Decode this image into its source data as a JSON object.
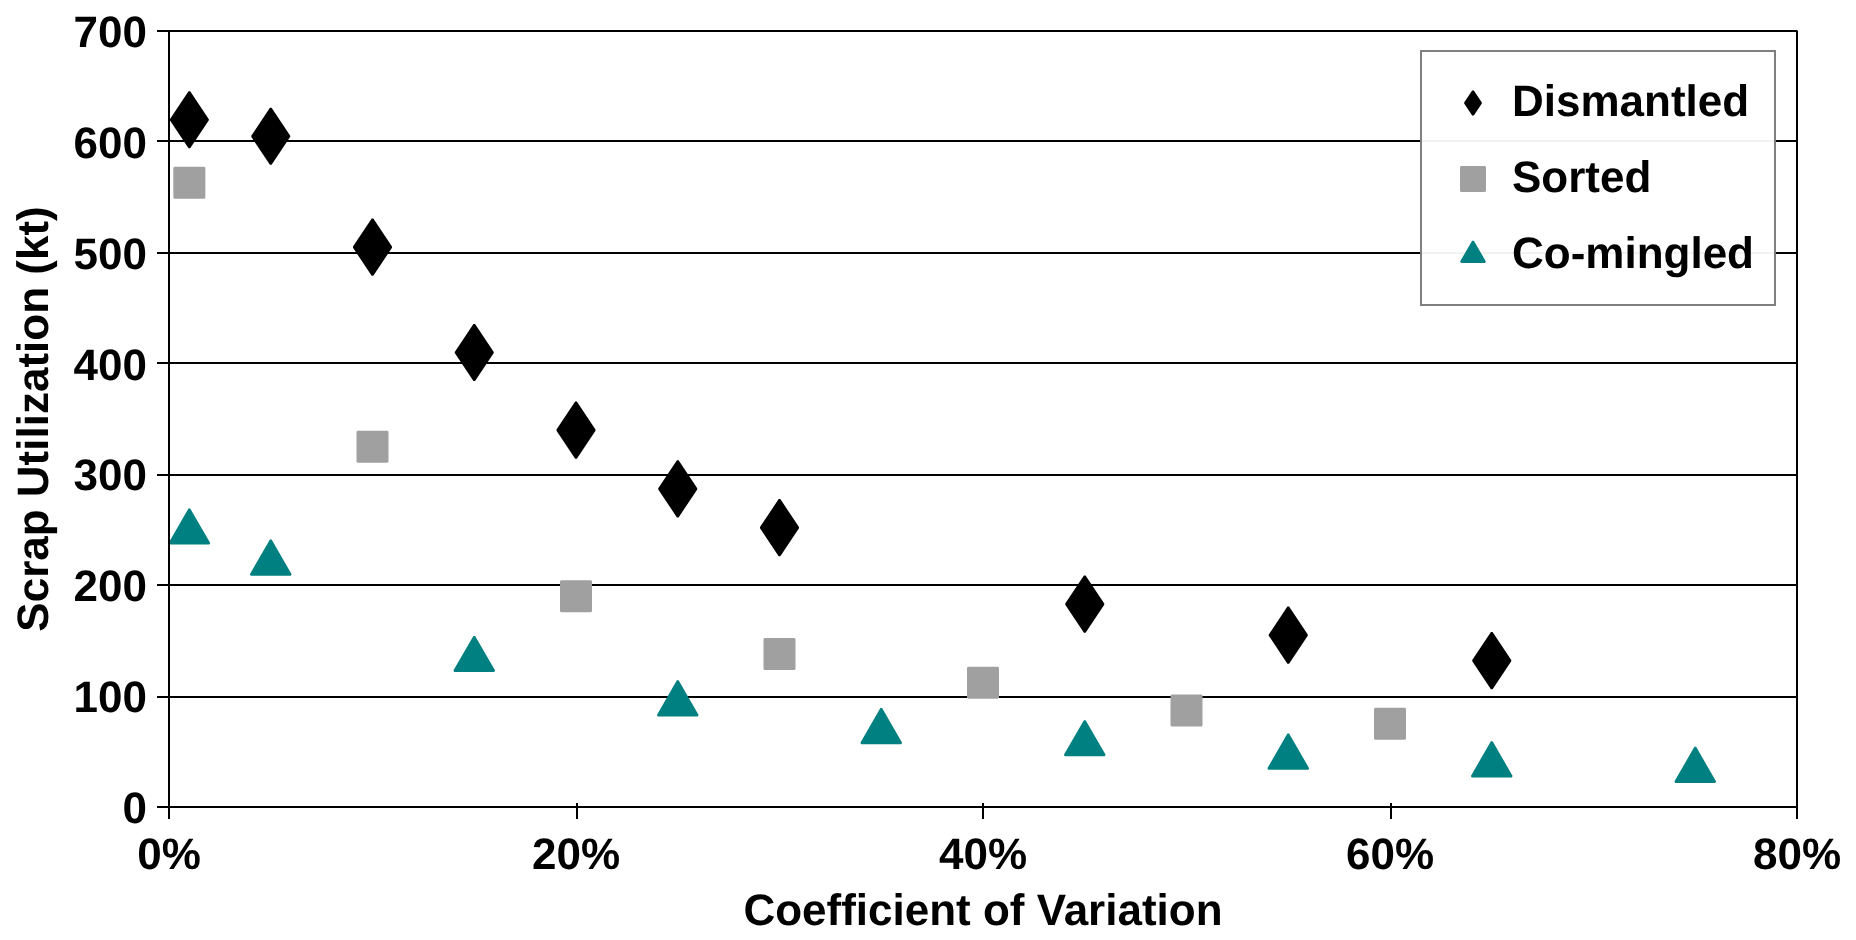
{
  "chart_data": {
    "type": "scatter",
    "xlabel": "Coefficient of Variation",
    "ylabel": "Scrap Utilization (kt)",
    "xlim": [
      0,
      80
    ],
    "ylim": [
      0,
      700
    ],
    "xticks": [
      {
        "value": 0,
        "label": "0%"
      },
      {
        "value": 20,
        "label": "20%"
      },
      {
        "value": 40,
        "label": "40%"
      },
      {
        "value": 60,
        "label": "60%"
      },
      {
        "value": 80,
        "label": "80%"
      }
    ],
    "yticks": [
      0,
      100,
      200,
      300,
      400,
      500,
      600,
      700
    ],
    "grid": "y",
    "legend": "top right",
    "series": [
      {
        "name": "Dismantled",
        "color": "#000000",
        "marker": "diamond",
        "x": [
          1,
          5,
          10,
          15,
          20,
          25,
          30,
          45,
          55,
          65
        ],
        "values": [
          620,
          605,
          505,
          410,
          340,
          287,
          252,
          183,
          155,
          132
        ]
      },
      {
        "name": "Sorted",
        "color": "#a0a0a0",
        "marker": "square",
        "x": [
          1,
          10,
          20,
          30,
          40,
          50,
          60
        ],
        "values": [
          563,
          325,
          190,
          138,
          112,
          87,
          75
        ]
      },
      {
        "name": "Co-mingled",
        "color": "#008080",
        "marker": "triangle",
        "x": [
          1,
          5,
          15,
          25,
          35,
          45,
          55,
          65,
          75
        ],
        "values": [
          248,
          220,
          133,
          93,
          68,
          57,
          45,
          38,
          33
        ]
      }
    ]
  }
}
